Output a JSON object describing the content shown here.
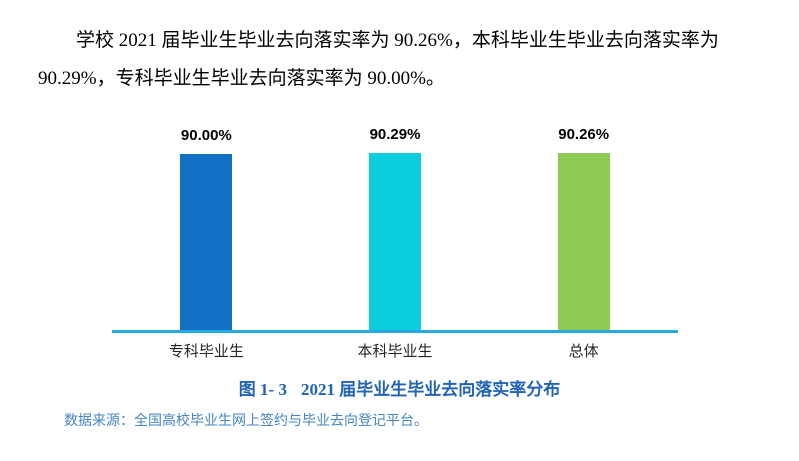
{
  "paragraph": {
    "full_text": "学校 2021 届毕业生毕业去向落实率为 90.26%，本科毕业生毕业去向落实率为 90.29%，专科毕业生毕业去向落实率为 90.00%。",
    "lines": [
      "学校 2021 届毕业生毕业去向落实率为 90.26%，本科毕业生毕业去向落实率为",
      "90.29%，专科毕业生毕业去向落实率为 90.00%。"
    ]
  },
  "chart_data": {
    "type": "bar",
    "categories": [
      "专科毕业生",
      "本科毕业生",
      "总体"
    ],
    "values": [
      90.0,
      90.29,
      90.26
    ],
    "value_labels": [
      "90.00%",
      "90.29%",
      "90.26%"
    ],
    "series_name": "毕业去向落实率",
    "title": "图 1- 3　2021 届毕业生毕业去向落实率分布",
    "xlabel": "",
    "ylabel": "",
    "ylim": [
      0,
      100
    ],
    "grid": false,
    "legend": "none",
    "bar_colors": [
      "#1170C4",
      "#0CCDDB",
      "#8DCB52"
    ],
    "axis_color": "#29A9E1"
  },
  "caption": {
    "figure_label": "图 1- 3",
    "figure_title": "2021 届毕业生毕业去向落实率分布",
    "color": "#2163B5"
  },
  "source": {
    "text": "数据来源：全国高校毕业生网上签约与毕业去向登记平台。",
    "color": "#4285C6"
  }
}
